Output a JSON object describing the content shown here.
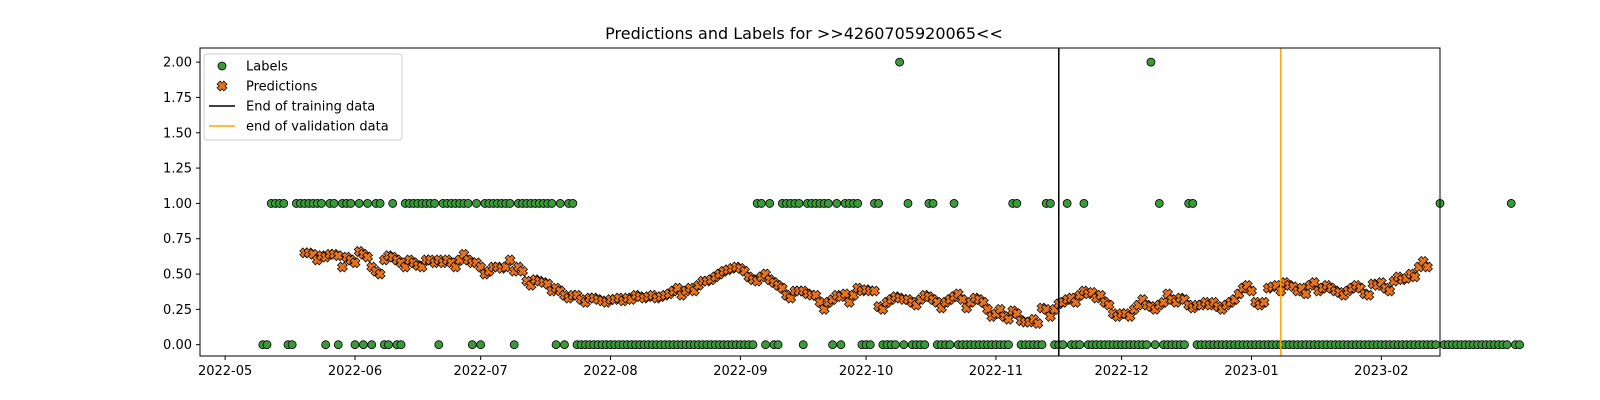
{
  "chart_data": {
    "type": "scatter",
    "title": "Predictions and Labels for >>4260705920065<<",
    "xlabel": "",
    "ylabel": "",
    "x_range": [
      "2022-04-25",
      "2023-02-15"
    ],
    "ylim": [
      -0.08,
      2.1
    ],
    "x_ticks": [
      "2022-05",
      "2022-06",
      "2022-07",
      "2022-08",
      "2022-09",
      "2022-10",
      "2022-11",
      "2022-12",
      "2023-01",
      "2023-02"
    ],
    "y_ticks": [
      "0.00",
      "0.25",
      "0.50",
      "0.75",
      "1.00",
      "1.25",
      "1.50",
      "1.75",
      "2.00"
    ],
    "grid": false,
    "legend_position": "upper-left",
    "colors": {
      "labels_fill": "#3a9a3a",
      "predictions_fill": "#e8731f",
      "training_line": "#000000",
      "validation_line": "#ffa500"
    },
    "legend": [
      {
        "label": "Labels",
        "kind": "circle",
        "color": "#3a9a3a"
      },
      {
        "label": "Predictions",
        "kind": "x-marker",
        "color": "#e8731f"
      },
      {
        "label": "End of training data",
        "kind": "line",
        "color": "#000000"
      },
      {
        "label": "end of validation data",
        "kind": "line",
        "color": "#ffa500"
      }
    ],
    "vertical_lines": [
      {
        "name": "End of training data",
        "x": "2022-11-16",
        "color": "#000000"
      },
      {
        "name": "end of validation data",
        "x": "2023-01-08",
        "color": "#ffa500"
      }
    ],
    "series": [
      {
        "name": "Labels",
        "start": "2022-05-10",
        "values": [
          0,
          0,
          1,
          1,
          1,
          1,
          0,
          0,
          1,
          1,
          1,
          1,
          1,
          1,
          1,
          0,
          1,
          1,
          0,
          1,
          1,
          1,
          0,
          1,
          0,
          1,
          0,
          1,
          1,
          0,
          0,
          1,
          0,
          0,
          1,
          1,
          1,
          1,
          1,
          1,
          1,
          1,
          0,
          1,
          1,
          1,
          1,
          1,
          1,
          1,
          0,
          1,
          0,
          1,
          1,
          1,
          1,
          1,
          1,
          1,
          0,
          1,
          1,
          1,
          1,
          1,
          1,
          1,
          1,
          1,
          0,
          1,
          0,
          1,
          1,
          0,
          0,
          0,
          0,
          0,
          0,
          0,
          0,
          0,
          0,
          0,
          0,
          0,
          0,
          0,
          0,
          0,
          0,
          0,
          0,
          0,
          0,
          0,
          0,
          0,
          0,
          0,
          0,
          0,
          0,
          0,
          0,
          0,
          0,
          0,
          0,
          0,
          0,
          0,
          0,
          0,
          0,
          0,
          1,
          1,
          0,
          1,
          0,
          0,
          1,
          1,
          1,
          1,
          1,
          0,
          1,
          1,
          1,
          1,
          1,
          1,
          0,
          1,
          0,
          1,
          1,
          1,
          1,
          0,
          0,
          0,
          1,
          1,
          0,
          0,
          0,
          0,
          2,
          0,
          1,
          0,
          0,
          0,
          0,
          1,
          1,
          0,
          0,
          0,
          0,
          1,
          0,
          0,
          0,
          0,
          0,
          0,
          0,
          0,
          0,
          0,
          0,
          0,
          0,
          1,
          1,
          0,
          0,
          0,
          0,
          0,
          0,
          1,
          1,
          0,
          0,
          0,
          1,
          0,
          0,
          0,
          1,
          0,
          0,
          0,
          0,
          0,
          0,
          0,
          0,
          0,
          0,
          0,
          0,
          0,
          0,
          0,
          2,
          0,
          1,
          0,
          0,
          0,
          0,
          0,
          0,
          1,
          1,
          0,
          0,
          0,
          0,
          0,
          0,
          0,
          0,
          0,
          0,
          0,
          0,
          0,
          0,
          0,
          0,
          0,
          0,
          0,
          0,
          0,
          0,
          0,
          0,
          0,
          0,
          0,
          0,
          0,
          0,
          0,
          0,
          0,
          0,
          0,
          0,
          0,
          0,
          0,
          0,
          0,
          0,
          0,
          0,
          0,
          0,
          0,
          0,
          0,
          0,
          0,
          0,
          0,
          0,
          0,
          0,
          0,
          0,
          1,
          0,
          0,
          0,
          0,
          0,
          0,
          0,
          0,
          0,
          0,
          0,
          0,
          0,
          0,
          0,
          0,
          1,
          0,
          0
        ]
      },
      {
        "name": "Predictions",
        "start": "2022-05-20",
        "values": [
          0.65,
          0.65,
          0.64,
          0.6,
          0.63,
          0.62,
          0.64,
          0.64,
          0.63,
          0.55,
          0.62,
          0.6,
          0.58,
          0.66,
          0.64,
          0.62,
          0.55,
          0.52,
          0.5,
          0.6,
          0.63,
          0.62,
          0.6,
          0.58,
          0.55,
          0.6,
          0.58,
          0.56,
          0.55,
          0.6,
          0.6,
          0.58,
          0.6,
          0.58,
          0.6,
          0.58,
          0.55,
          0.6,
          0.64,
          0.6,
          0.58,
          0.58,
          0.55,
          0.5,
          0.52,
          0.55,
          0.55,
          0.54,
          0.55,
          0.6,
          0.52,
          0.55,
          0.52,
          0.45,
          0.42,
          0.46,
          0.45,
          0.44,
          0.43,
          0.38,
          0.4,
          0.38,
          0.35,
          0.33,
          0.35,
          0.35,
          0.32,
          0.3,
          0.33,
          0.33,
          0.32,
          0.31,
          0.3,
          0.32,
          0.32,
          0.33,
          0.31,
          0.33,
          0.32,
          0.35,
          0.34,
          0.33,
          0.34,
          0.35,
          0.33,
          0.34,
          0.35,
          0.36,
          0.38,
          0.4,
          0.35,
          0.38,
          0.4,
          0.38,
          0.42,
          0.45,
          0.45,
          0.46,
          0.48,
          0.5,
          0.52,
          0.53,
          0.54,
          0.55,
          0.54,
          0.52,
          0.48,
          0.46,
          0.45,
          0.48,
          0.5,
          0.46,
          0.44,
          0.42,
          0.4,
          0.35,
          0.33,
          0.38,
          0.38,
          0.38,
          0.36,
          0.35,
          0.35,
          0.3,
          0.25,
          0.3,
          0.32,
          0.35,
          0.34,
          0.36,
          0.3,
          0.35,
          0.4,
          0.38,
          0.39,
          0.38,
          0.38,
          0.27,
          0.25,
          0.3,
          0.32,
          0.34,
          0.33,
          0.32,
          0.32,
          0.3,
          0.28,
          0.32,
          0.35,
          0.34,
          0.32,
          0.3,
          0.26,
          0.3,
          0.32,
          0.34,
          0.36,
          0.32,
          0.26,
          0.3,
          0.33,
          0.32,
          0.3,
          0.25,
          0.2,
          0.22,
          0.25,
          0.2,
          0.18,
          0.24,
          0.22,
          0.17,
          0.16,
          0.16,
          0.18,
          0.15,
          0.26,
          0.25,
          0.2,
          0.25,
          0.29,
          0.3,
          0.32,
          0.33,
          0.3,
          0.35,
          0.38,
          0.36,
          0.37,
          0.33,
          0.35,
          0.3,
          0.28,
          0.22,
          0.2,
          0.22,
          0.22,
          0.2,
          0.25,
          0.28,
          0.32,
          0.28,
          0.27,
          0.25,
          0.28,
          0.3,
          0.36,
          0.32,
          0.3,
          0.33,
          0.32,
          0.28,
          0.26,
          0.28,
          0.28,
          0.3,
          0.28,
          0.3,
          0.27,
          0.25,
          0.28,
          0.3,
          0.32,
          0.36,
          0.4,
          0.42,
          0.38,
          0.3,
          0.28,
          0.3,
          0.4,
          0.41,
          0.42,
          0.38,
          0.44,
          0.42,
          0.41,
          0.38,
          0.4,
          0.36,
          0.42,
          0.44,
          0.38,
          0.4,
          0.42,
          0.4,
          0.38,
          0.37,
          0.35,
          0.38,
          0.4,
          0.42,
          0.4,
          0.36,
          0.35,
          0.43,
          0.42,
          0.44,
          0.4,
          0.38,
          0.45,
          0.48,
          0.46,
          0.47,
          0.5,
          0.48,
          0.55,
          0.59,
          0.55
        ]
      }
    ]
  }
}
